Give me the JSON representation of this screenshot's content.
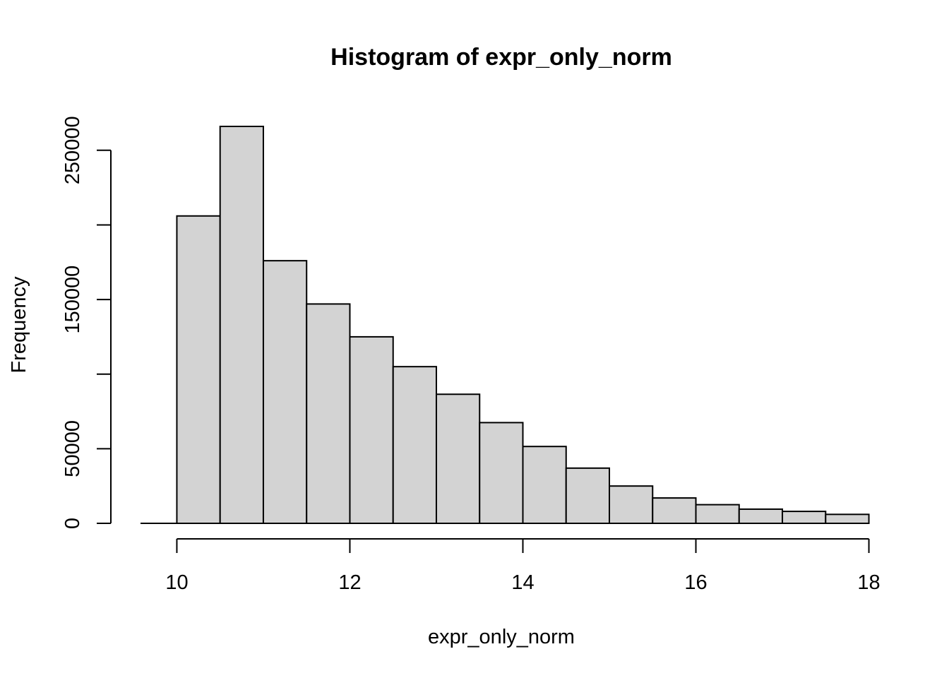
{
  "chart_data": {
    "type": "bar",
    "title": "Histogram of expr_only_norm",
    "xlabel": "expr_only_norm",
    "ylabel": "Frequency",
    "bin_edges": [
      10,
      10.5,
      11,
      11.5,
      12,
      12.5,
      13,
      13.5,
      14,
      14.5,
      15,
      15.5,
      16,
      16.5,
      17,
      17.5,
      18
    ],
    "values": [
      206000,
      266000,
      176000,
      147000,
      125000,
      105000,
      86500,
      67500,
      51500,
      37000,
      25000,
      17000,
      12500,
      9500,
      8000,
      6000
    ],
    "x_ticks": [
      10,
      12,
      14,
      16,
      18
    ],
    "x_tick_labels": [
      "10",
      "12",
      "14",
      "16",
      "18"
    ],
    "y_ticks": [
      0,
      50000,
      100000,
      150000,
      200000,
      250000
    ],
    "y_tick_labels": [
      "0",
      "50000",
      "",
      "150000",
      "",
      "250000"
    ],
    "xlim": [
      9.58,
      18.42
    ],
    "ylim": [
      0,
      266000
    ],
    "grid": false,
    "colors": {
      "bar_fill": "#d3d3d3",
      "bar_stroke": "#000000"
    }
  }
}
